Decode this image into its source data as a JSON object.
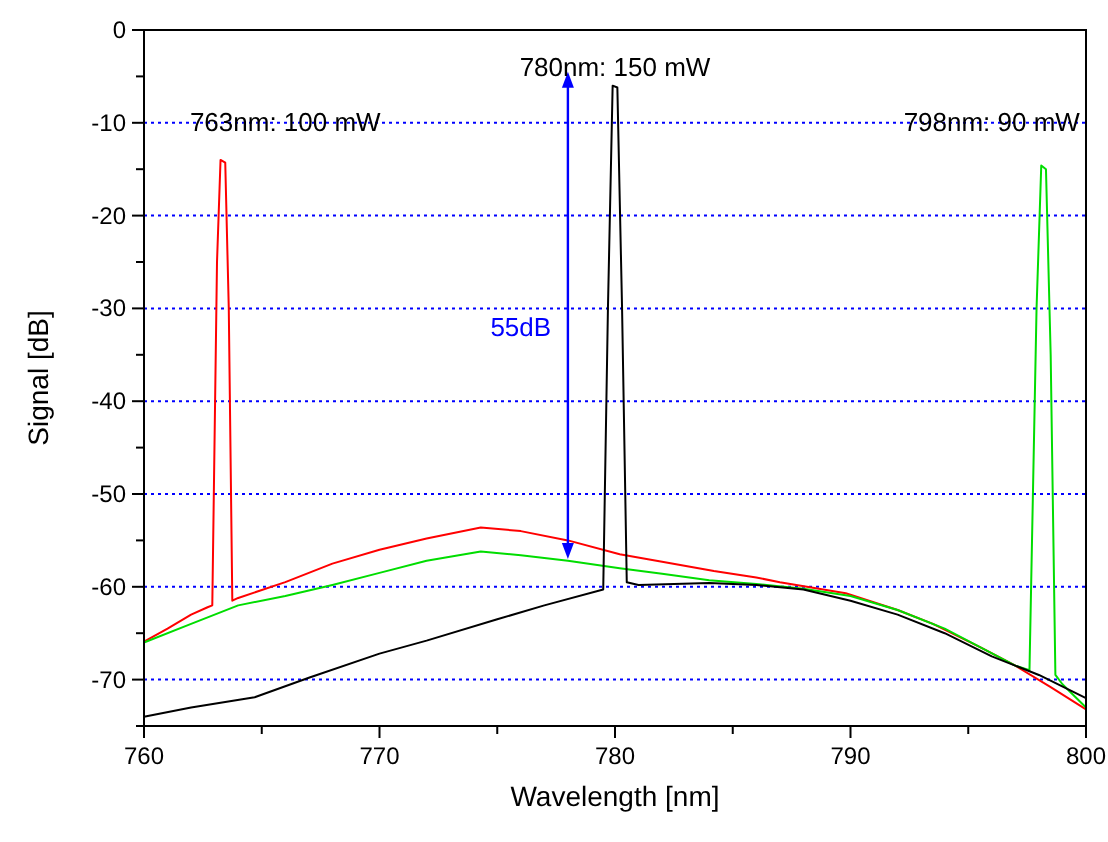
{
  "chart_data": {
    "type": "line",
    "xlabel": "Wavelength [nm]",
    "ylabel": "Signal [dB]",
    "xlim": [
      760,
      800
    ],
    "ylim": [
      -75,
      0
    ],
    "xticks": [
      760,
      {
        "value": 765,
        "label": null
      },
      770,
      {
        "value": 775,
        "label": null
      },
      780,
      {
        "value": 785,
        "label": null
      },
      790,
      {
        "value": 795,
        "label": null
      },
      800
    ],
    "yticks": [
      {
        "value": -75,
        "label": null
      },
      -70,
      {
        "value": -65,
        "label": null
      },
      -60,
      {
        "value": -55,
        "label": null
      },
      -50,
      {
        "value": -45,
        "label": null
      },
      -40,
      {
        "value": -35,
        "label": null
      },
      -30,
      {
        "value": -25,
        "label": null
      },
      -20,
      {
        "value": -15,
        "label": null
      },
      -10,
      {
        "value": -5,
        "label": null
      },
      0
    ],
    "grid": "y",
    "marker": "none",
    "line_style": "solid",
    "series": [
      {
        "color": "#ff0000",
        "x": [
          760,
          761,
          762,
          762.7,
          762.9,
          763.1,
          763.25,
          763.45,
          763.6,
          763.75,
          764,
          766,
          768,
          770,
          772,
          774.3,
          776,
          778,
          780.2,
          782,
          784.2,
          786,
          787,
          789.8,
          792,
          793.5,
          795.5,
          797,
          798.5,
          800
        ],
        "values": [
          -65.9,
          -64.5,
          -63,
          -62.2,
          -62,
          -25,
          -14,
          -14.3,
          -30,
          -61.5,
          -61.2,
          -59.5,
          -57.5,
          -56,
          -54.8,
          -53.6,
          -54,
          -55,
          -56.5,
          -57.3,
          -58.3,
          -59,
          -59.5,
          -60.7,
          -62.5,
          -64,
          -66.5,
          -68.5,
          -70.8,
          -73.2
        ]
      },
      {
        "color": "#00dd00",
        "x": [
          760,
          762,
          764,
          766,
          768,
          770,
          772,
          774.3,
          776,
          778,
          780.2,
          782,
          784,
          786,
          788,
          790,
          792,
          794,
          795.5,
          797,
          797.6,
          797.9,
          798.1,
          798.3,
          798.5,
          798.7,
          799,
          800
        ],
        "values": [
          -66,
          -64,
          -62,
          -61,
          -59.8,
          -58.5,
          -57.2,
          -56.2,
          -56.6,
          -57.2,
          -58,
          -58.6,
          -59.3,
          -59.7,
          -60.2,
          -61,
          -62.5,
          -64.5,
          -66.5,
          -68.5,
          -69,
          -30,
          -14.6,
          -15,
          -35,
          -69.5,
          -70.5,
          -73
        ]
      },
      {
        "color": "#000000",
        "x": [
          760,
          762,
          764.7,
          767,
          770,
          772,
          775,
          777,
          779.5,
          779.7,
          779.9,
          780.1,
          780.3,
          780.5,
          781,
          784,
          786,
          788,
          790,
          792,
          794,
          796,
          798,
          800
        ],
        "values": [
          -74,
          -73,
          -71.9,
          -69.8,
          -67.2,
          -65.8,
          -63.5,
          -62,
          -60.3,
          -30,
          -6,
          -6.2,
          -30,
          -59.5,
          -59.8,
          -59.6,
          -59.8,
          -60.3,
          -61.5,
          -63,
          -65,
          -67.5,
          -69.5,
          -72
        ]
      }
    ],
    "annotations": [
      "763nm: 100 mW",
      {
        "text": "780nm: 150 mW",
        "x": 780,
        "y": -5
      },
      "798nm: 90 mW",
      "55dB"
    ]
  }
}
